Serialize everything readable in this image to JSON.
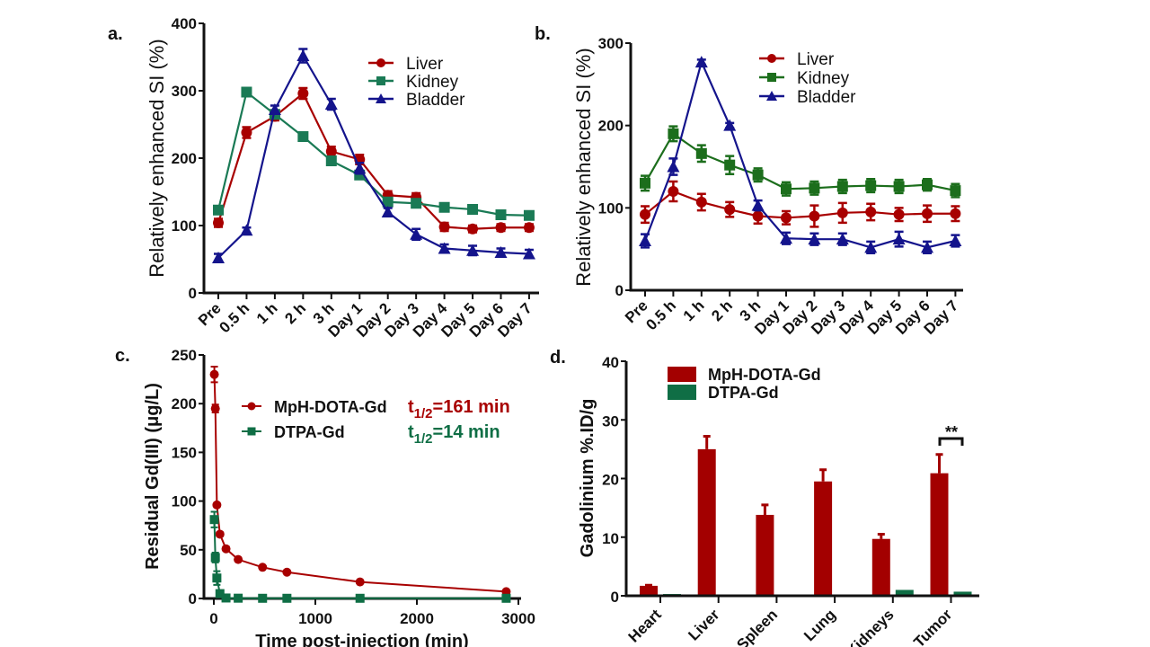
{
  "colors": {
    "liver_red": "#a80000",
    "kidney_green_a": "#1a7a55",
    "kidney_green_b": "#1c6e1c",
    "bladder_blue": "#14148c",
    "dtpa_green": "#0f6e45"
  },
  "chart_data": [
    {
      "panel": "a.",
      "type": "line",
      "categories": [
        "Pre",
        "0.5 h",
        "1 h",
        "2 h",
        "3 h",
        "Day 1",
        "Day 2",
        "Day 3",
        "Day 4",
        "Day 5",
        "Day 6",
        "Day 7"
      ],
      "ylabel": "Relatively enhanced SI (%)",
      "ylim": [
        0,
        400
      ],
      "yticks": [
        "0",
        "100",
        "200",
        "300",
        "400"
      ],
      "legend": "top-right",
      "series": [
        {
          "name": "Liver",
          "marker": "circle",
          "color": "#a80000",
          "values": [
            104,
            238,
            262,
            296,
            210,
            198,
            145,
            142,
            98,
            95,
            97,
            97
          ],
          "error": [
            6,
            8,
            6,
            8,
            7,
            7,
            6,
            6,
            6,
            5,
            5,
            5
          ]
        },
        {
          "name": "Kidney",
          "marker": "square",
          "color": "#1a7a55",
          "values": [
            123,
            298,
            265,
            232,
            196,
            175,
            135,
            133,
            127,
            124,
            116,
            115
          ],
          "error": [
            5,
            5,
            6,
            6,
            5,
            5,
            5,
            5,
            4,
            4,
            4,
            4
          ]
        },
        {
          "name": "Bladder",
          "marker": "triangle",
          "color": "#14148c",
          "values": [
            52,
            93,
            272,
            352,
            280,
            185,
            120,
            87,
            66,
            63,
            60,
            58
          ],
          "error": [
            6,
            4,
            6,
            10,
            8,
            8,
            6,
            8,
            6,
            7,
            6,
            6
          ]
        }
      ]
    },
    {
      "panel": "b.",
      "type": "line",
      "categories": [
        "Pre",
        "0.5 h",
        "1 h",
        "2 h",
        "3 h",
        "Day 1",
        "Day 2",
        "Day 3",
        "Day 4",
        "Day 5",
        "Day 6",
        "Day 7"
      ],
      "ylabel": "Relatively enhanced SI (%)",
      "ylim": [
        0,
        300
      ],
      "yticks": [
        "0",
        "100",
        "200",
        "300"
      ],
      "legend": "top-right",
      "series": [
        {
          "name": "Liver",
          "marker": "circle",
          "color": "#a80000",
          "values": [
            92,
            120,
            107,
            98,
            90,
            88,
            90,
            94,
            95,
            92,
            93,
            93
          ],
          "error": [
            10,
            12,
            10,
            9,
            9,
            8,
            13,
            12,
            10,
            8,
            10,
            9
          ]
        },
        {
          "name": "Kidney",
          "marker": "square",
          "color": "#1c6e1c",
          "values": [
            130,
            190,
            166,
            152,
            140,
            123,
            124,
            126,
            127,
            126,
            128,
            121
          ],
          "error": [
            9,
            9,
            10,
            11,
            8,
            8,
            8,
            8,
            8,
            8,
            7,
            8
          ]
        },
        {
          "name": "Bladder",
          "marker": "triangle",
          "color": "#14148c",
          "values": [
            60,
            150,
            277,
            200,
            103,
            63,
            62,
            62,
            52,
            62,
            52,
            60
          ],
          "error": [
            8,
            10,
            3,
            3,
            6,
            7,
            7,
            7,
            7,
            9,
            7,
            7
          ]
        }
      ]
    },
    {
      "panel": "c.",
      "type": "line",
      "xlabel": "Time post-injection (min)",
      "ylabel": "Residual Gd(III)  (μg/L)",
      "xlim": [
        0,
        3000
      ],
      "ylim": [
        0,
        250
      ],
      "xticks": [
        "0",
        "1000",
        "2000",
        "3000"
      ],
      "yticks": [
        "0",
        "50",
        "100",
        "150",
        "200",
        "250"
      ],
      "legend": "top-right",
      "series": [
        {
          "name": "MpH-DOTA-Gd",
          "marker": "circle",
          "color": "#a80000",
          "half_life": {
            "t": "t",
            "sub": "1/2",
            "rest": "=161 min"
          },
          "x": [
            5,
            15,
            30,
            60,
            120,
            240,
            480,
            720,
            1440,
            2880
          ],
          "values": [
            230,
            195,
            96,
            66,
            51,
            40,
            32,
            27,
            17,
            7
          ],
          "error": [
            8,
            4,
            2,
            2,
            2,
            1,
            1,
            1,
            1,
            1
          ]
        },
        {
          "name": "DTPA-Gd",
          "marker": "square",
          "color": "#0f6e45",
          "half_life": {
            "t": "t",
            "sub": "1/2",
            "rest": "=14   min"
          },
          "x": [
            5,
            15,
            30,
            60,
            120,
            240,
            480,
            720,
            1440,
            2880
          ],
          "values": [
            81,
            42,
            21,
            5,
            0.5,
            0.3,
            0.2,
            0.2,
            0.2,
            0.2
          ],
          "error": [
            8,
            5,
            7,
            2,
            0,
            0,
            0,
            0,
            0,
            0
          ]
        }
      ]
    },
    {
      "panel": "d.",
      "type": "bar",
      "categories": [
        "Heart",
        "Liver",
        "Spleen",
        "Lung",
        "Kidneys",
        "Tumor"
      ],
      "ylabel": "Gadolinium %.ID/g",
      "ylim": [
        0,
        40
      ],
      "yticks": [
        "0",
        "10",
        "20",
        "30",
        "40"
      ],
      "legend": "top-left",
      "annotation": "**",
      "series": [
        {
          "name": "MpH-DOTA-Gd",
          "color": "#a30000",
          "values": [
            1.7,
            25.0,
            13.8,
            19.5,
            9.7,
            20.9
          ],
          "error": [
            0.1,
            2.2,
            1.7,
            2.0,
            0.8,
            3.2
          ]
        },
        {
          "name": "DTPA-Gd",
          "color": "#0f6e45",
          "values": [
            0.3,
            0.2,
            0.2,
            0.15,
            1.0,
            0.7
          ],
          "error": [
            0.05,
            0.05,
            0.05,
            0.05,
            0.15,
            0.15
          ]
        }
      ]
    }
  ]
}
